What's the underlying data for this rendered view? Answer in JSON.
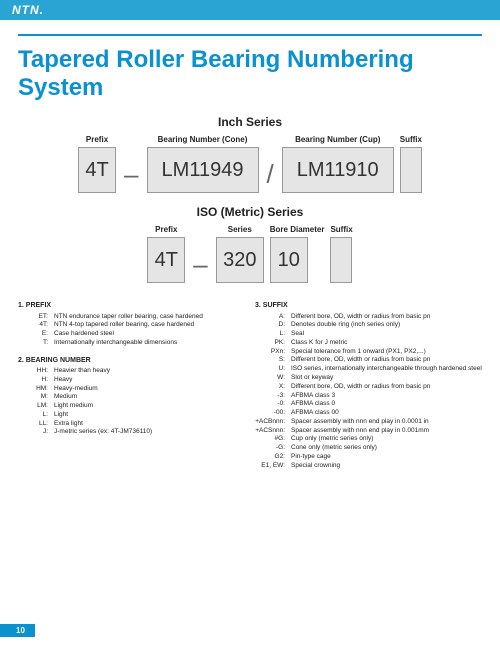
{
  "brand": "NTN.",
  "title": "Tapered Roller Bearing Numbering System",
  "inch": {
    "heading": "Inch Series",
    "labels": {
      "prefix": "Prefix",
      "cone": "Bearing Number (Cone)",
      "cup": "Bearing Number (Cup)",
      "suffix": "Suffix"
    },
    "prefix": "4T",
    "dash": "–",
    "cone": "LM11949",
    "slash": "/",
    "cup": "LM11910",
    "suffix": ""
  },
  "iso": {
    "heading": "ISO (Metric) Series",
    "labels": {
      "prefix": "Prefix",
      "series": "Series",
      "bore": "Bore Diameter",
      "suffix": "Suffix"
    },
    "prefix": "4T",
    "dash": "–",
    "series": "320",
    "bore": "10",
    "suffix": ""
  },
  "prefixDefs": {
    "heading": "1.   PREFIX",
    "items": [
      {
        "k": "ET:",
        "v": "NTN endurance taper roller bearing, case hardened"
      },
      {
        "k": "4T:",
        "v": "NTN 4-top tapered roller bearing, case hardened"
      },
      {
        "k": "E:",
        "v": "Case hardened steel"
      },
      {
        "k": "T:",
        "v": "Internationally interchangeable dimensions"
      }
    ]
  },
  "bearingDefs": {
    "heading": "2.   BEARING NUMBER",
    "items": [
      {
        "k": "HH:",
        "v": "Heavier than heavy"
      },
      {
        "k": "H:",
        "v": "Heavy"
      },
      {
        "k": "HM:",
        "v": "Heavy-medium"
      },
      {
        "k": "M:",
        "v": "Medium"
      },
      {
        "k": "LM:",
        "v": "Light medium"
      },
      {
        "k": "L:",
        "v": "Light"
      },
      {
        "k": "LL:",
        "v": "Extra light"
      },
      {
        "k": "J:",
        "v": "J-metric series (ex: 4T-JM736110)"
      }
    ]
  },
  "suffixDefs": {
    "heading": "3.   SUFFIX",
    "items": [
      {
        "k": "A:",
        "v": "Different bore, OD, width or radius from basic pn"
      },
      {
        "k": "D:",
        "v": "Denotes double ring (inch series only)"
      },
      {
        "k": "L:",
        "v": "Seal"
      },
      {
        "k": "PK:",
        "v": "Class K for J metric"
      },
      {
        "k": "PXn:",
        "v": "Special tolerance from 1 onward (PX1, PX2,...)"
      },
      {
        "k": "S:",
        "v": "Different bore, OD, width or radius from basic pn"
      },
      {
        "k": "U:",
        "v": "ISO series, internationally interchangeable through hardened steel"
      },
      {
        "k": "W:",
        "v": "Slot or keyway"
      },
      {
        "k": "X:",
        "v": "Different bore, OD, width or radius from basic pn"
      },
      {
        "k": "-3:",
        "v": "AFBMA class 3"
      },
      {
        "k": "-0:",
        "v": "AFBMA class 0"
      },
      {
        "k": "-00:",
        "v": "AFBMA class 00"
      },
      {
        "k": "+ACBnnn:",
        "v": "Spacer assembly with nnn end play in 0.0001 in"
      },
      {
        "k": "+ACSnnn:",
        "v": "Spacer assembly with nnn end play in 0.001mm"
      },
      {
        "k": "#G:",
        "v": "Cup only (metric series only)"
      },
      {
        "k": "-G:",
        "v": "Cone only (metric series only)"
      },
      {
        "k": "G2:",
        "v": "Pin-type cage"
      },
      {
        "k": "E1, EW:",
        "v": "Special crowning"
      }
    ]
  },
  "pageNumber": "10"
}
